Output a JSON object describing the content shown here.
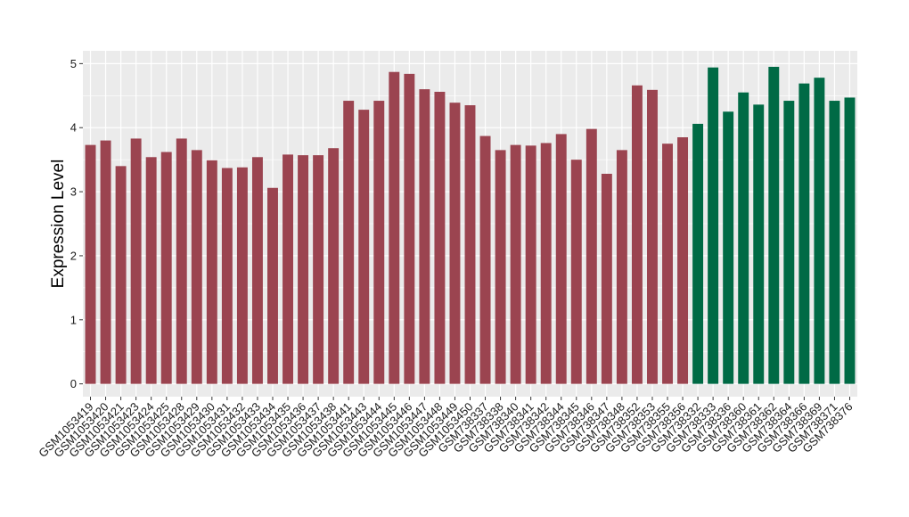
{
  "chart_data": {
    "type": "bar",
    "title": "",
    "xlabel": "",
    "ylabel": "Expression Level",
    "ylim": [
      -0.2,
      5.2
    ],
    "yticks": [
      0,
      1,
      2,
      3,
      4,
      5
    ],
    "grid": true,
    "legend": "none",
    "colors": {
      "group1": "#9b4450",
      "group2": "#006a45",
      "panel": "#ebebeb",
      "grid": "#ffffff"
    },
    "categories": [
      "GSM1053419",
      "GSM1053420",
      "GSM1053421",
      "GSM1053423",
      "GSM1053424",
      "GSM1053425",
      "GSM1053428",
      "GSM1053429",
      "GSM1053430",
      "GSM1053431",
      "GSM1053432",
      "GSM1053433",
      "GSM1053434",
      "GSM1053435",
      "GSM1053436",
      "GSM1053437",
      "GSM1053438",
      "GSM1053441",
      "GSM1053443",
      "GSM1053444",
      "GSM1053445",
      "GSM1053446",
      "GSM1053447",
      "GSM1053448",
      "GSM1053449",
      "GSM1053450",
      "GSM738337",
      "GSM738338",
      "GSM738340",
      "GSM738341",
      "GSM738342",
      "GSM738344",
      "GSM738345",
      "GSM738346",
      "GSM738347",
      "GSM738348",
      "GSM738352",
      "GSM738353",
      "GSM738355",
      "GSM738356",
      "GSM738332",
      "GSM738333",
      "GSM738336",
      "GSM738360",
      "GSM738361",
      "GSM738362",
      "GSM738364",
      "GSM738366",
      "GSM738369",
      "GSM738371",
      "GSM738376"
    ],
    "values": [
      3.73,
      3.8,
      3.4,
      3.83,
      3.54,
      3.62,
      3.83,
      3.65,
      3.49,
      3.37,
      3.38,
      3.54,
      3.06,
      3.58,
      3.57,
      3.57,
      3.68,
      4.42,
      4.28,
      4.42,
      4.87,
      4.84,
      4.6,
      4.56,
      4.39,
      4.35,
      3.87,
      3.65,
      3.73,
      3.72,
      3.76,
      3.9,
      3.5,
      3.98,
      3.28,
      3.65,
      4.66,
      4.59,
      3.75,
      3.85,
      4.06,
      4.94,
      4.25,
      4.55,
      4.36,
      4.95,
      4.42,
      4.69,
      4.78,
      4.42,
      4.47
    ],
    "groups": [
      1,
      1,
      1,
      1,
      1,
      1,
      1,
      1,
      1,
      1,
      1,
      1,
      1,
      1,
      1,
      1,
      1,
      1,
      1,
      1,
      1,
      1,
      1,
      1,
      1,
      1,
      1,
      1,
      1,
      1,
      1,
      1,
      1,
      1,
      1,
      1,
      1,
      1,
      1,
      1,
      2,
      2,
      2,
      2,
      2,
      2,
      2,
      2,
      2,
      2,
      2
    ]
  }
}
